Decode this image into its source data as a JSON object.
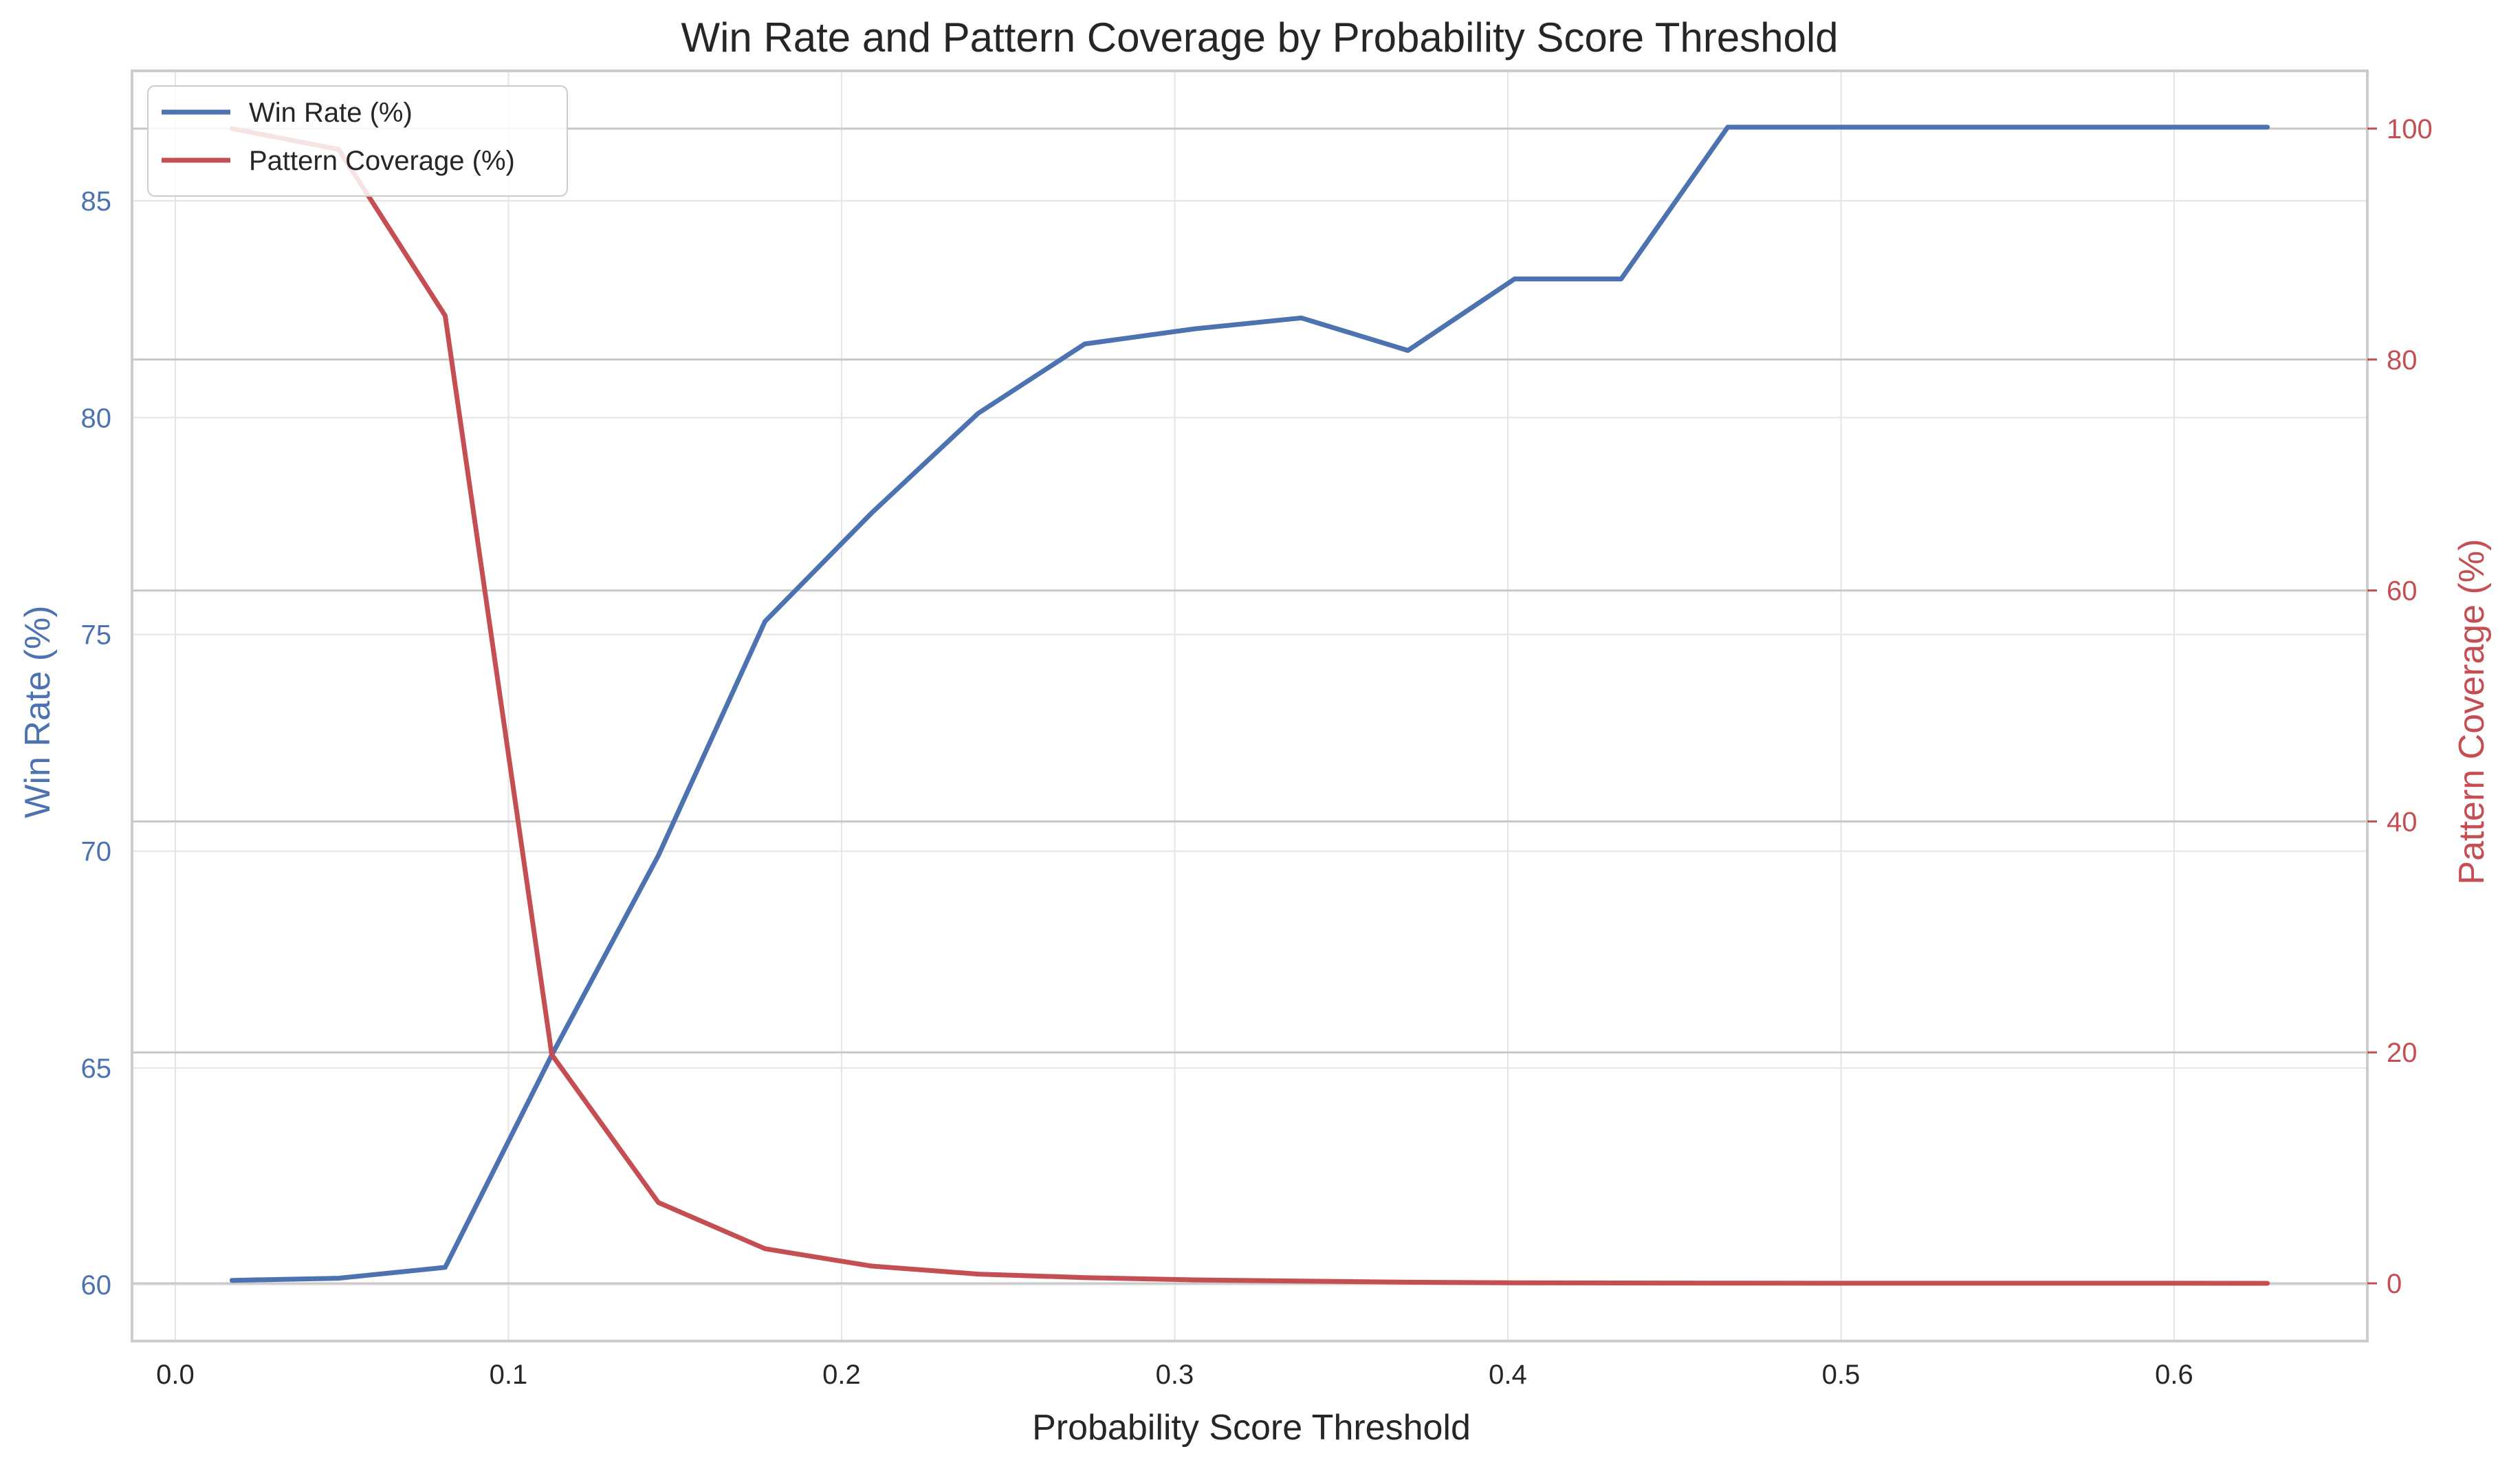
{
  "chart_data": {
    "type": "line",
    "title": "Win Rate and Pattern Coverage by Probability Score Threshold",
    "xlabel": "Probability Score Threshold",
    "ylabel_left": "Win Rate (%)",
    "ylabel_right": "Pattern Coverage (%)",
    "xlim": [
      -0.013,
      0.658
    ],
    "ylim_left": [
      58.7,
      88.0
    ],
    "ylim_right": [
      -5,
      105
    ],
    "x_ticks": [
      0.0,
      0.1,
      0.2,
      0.3,
      0.4,
      0.5,
      0.6
    ],
    "x_tick_labels": [
      "0.0",
      "0.1",
      "0.2",
      "0.3",
      "0.4",
      "0.5",
      "0.6"
    ],
    "y_left_ticks": [
      60,
      65,
      70,
      75,
      80,
      85
    ],
    "y_left_tick_labels": [
      "60",
      "65",
      "70",
      "75",
      "80",
      "85"
    ],
    "y_right_ticks": [
      0,
      20,
      40,
      60,
      80,
      100
    ],
    "y_right_tick_labels": [
      "0",
      "20",
      "40",
      "60",
      "80",
      "100"
    ],
    "grid": true,
    "legend_position": "top-left",
    "colors": {
      "win_rate": "#4c72b0",
      "coverage": "#c44e52",
      "grid": "#e5e5e5",
      "right_grid": "#c8c8c8",
      "spine": "#cccccc",
      "text": "#262626"
    },
    "x": [
      0.017,
      0.049,
      0.081,
      0.113,
      0.145,
      0.177,
      0.209,
      0.241,
      0.273,
      0.306,
      0.338,
      0.37,
      0.402,
      0.434,
      0.466,
      0.498,
      0.53,
      0.562,
      0.594,
      0.628
    ],
    "series": [
      {
        "name": "Win Rate (%)",
        "axis": "left",
        "values": [
          60.1,
          60.15,
          60.4,
          65.3,
          69.9,
          75.3,
          77.8,
          80.1,
          81.7,
          82.05,
          82.3,
          81.55,
          83.2,
          83.2,
          86.7,
          86.7,
          86.7,
          86.7,
          86.7,
          86.7
        ]
      },
      {
        "name": "Pattern Coverage (%)",
        "axis": "right",
        "values": [
          100,
          98.2,
          83.8,
          19.8,
          7.0,
          3.0,
          1.5,
          0.8,
          0.5,
          0.3,
          0.2,
          0.1,
          0.05,
          0.03,
          0.02,
          0.01,
          0.01,
          0.01,
          0.01,
          0.0
        ]
      }
    ]
  }
}
